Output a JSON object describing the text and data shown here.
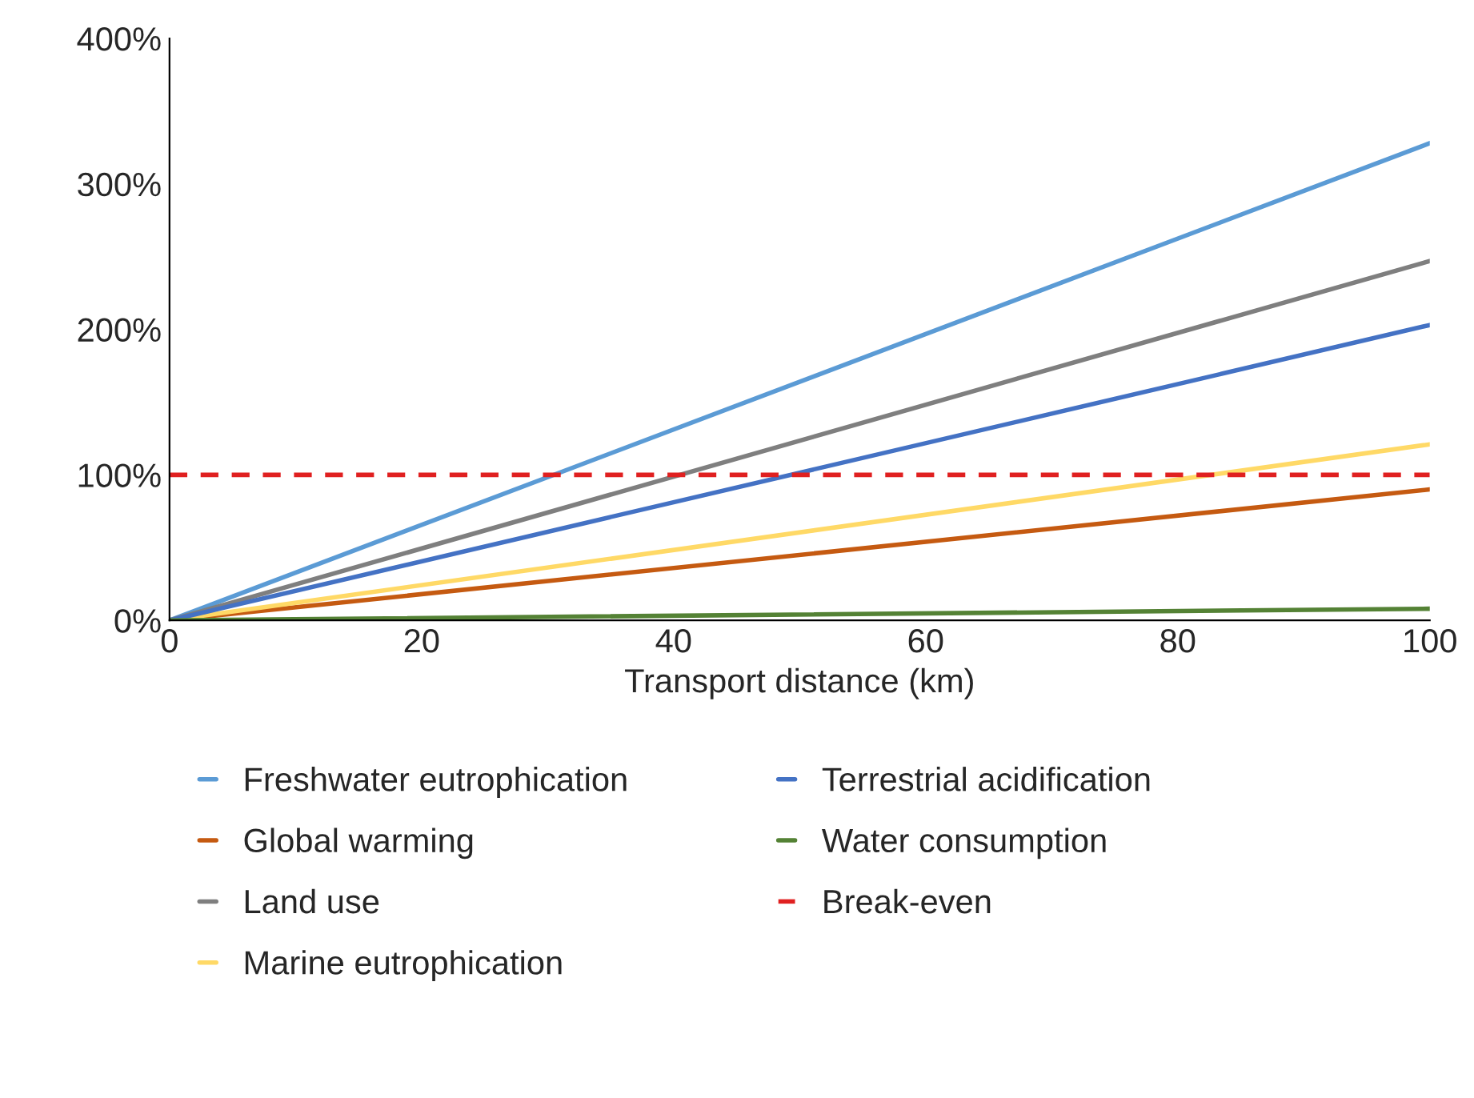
{
  "chart_data": {
    "type": "line",
    "xlabel": "Transport distance (km)",
    "x": [
      0,
      100
    ],
    "series": [
      {
        "name": "Freshwater eutrophication",
        "color": "#5b9bd5",
        "values": [
          0,
          328
        ]
      },
      {
        "name": "Global warming",
        "color": "#c55a11",
        "values": [
          0,
          90
        ]
      },
      {
        "name": "Land use",
        "color": "#7f7f7f",
        "values": [
          0,
          247
        ]
      },
      {
        "name": "Marine eutrophication",
        "color": "#ffd966",
        "values": [
          0,
          121
        ]
      },
      {
        "name": "Terrestrial acidification",
        "color": "#4472c4",
        "values": [
          0,
          203
        ]
      },
      {
        "name": "Water consumption",
        "color": "#548235",
        "values": [
          0,
          8
        ]
      }
    ],
    "ref_lines": [
      {
        "axis": "y",
        "value": 100,
        "label": "Break-even",
        "color": "#e02020",
        "line_style": "dashed"
      }
    ],
    "xlim": [
      0,
      100
    ],
    "xticks": [
      0,
      20,
      40,
      60,
      80,
      100
    ],
    "ylim": [
      0,
      400
    ],
    "yticks": [
      {
        "value": 0,
        "label": "0%"
      },
      {
        "value": 100,
        "label": "100%"
      },
      {
        "value": 200,
        "label": "200%"
      },
      {
        "value": 300,
        "label": "300%"
      },
      {
        "value": 400,
        "label": "400%"
      }
    ],
    "grid": false,
    "legend": "bottom",
    "marker": "none",
    "line_style": "solid"
  }
}
